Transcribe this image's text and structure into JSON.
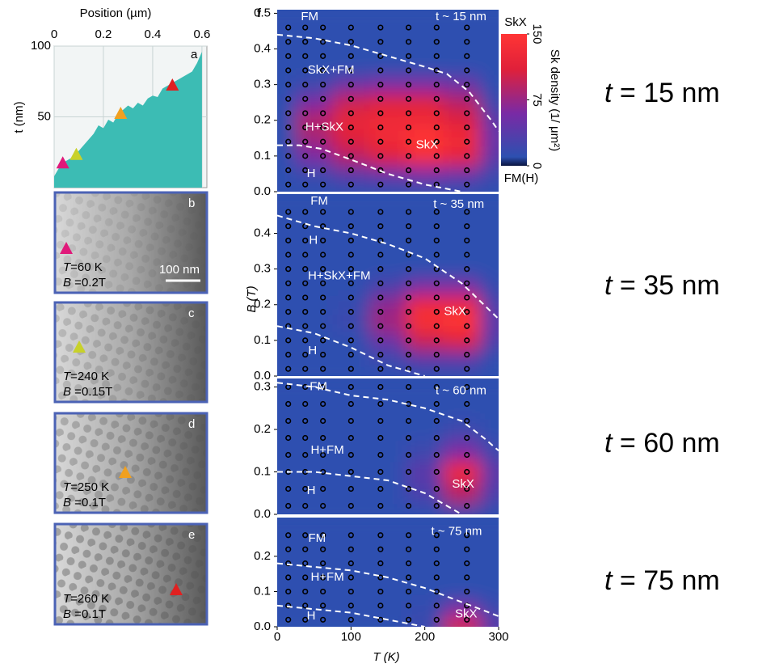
{
  "figure": {
    "panel_f_letter": "f",
    "right_labels": [
      {
        "symbol": "t",
        "text": " = 15 nm"
      },
      {
        "symbol": "t",
        "text": " = 35 nm"
      },
      {
        "symbol": "t",
        "text": " = 60 nm"
      },
      {
        "symbol": "t",
        "text": " = 75 nm"
      }
    ]
  },
  "micrographs": [
    {
      "letter": "b",
      "T_symbol": "T",
      "T_text": "=60 K",
      "B_symbol": "B",
      "B_text": " =0.2T",
      "scale_bar": "100 nm"
    },
    {
      "letter": "c",
      "T_symbol": "T",
      "T_text": "=240 K",
      "B_symbol": "B",
      "B_text": " =0.15T"
    },
    {
      "letter": "d",
      "T_symbol": "T",
      "T_text": "=250 K",
      "B_symbol": "B",
      "B_text": " =0.1T"
    },
    {
      "letter": "e",
      "T_symbol": "T",
      "T_text": "=260 K",
      "B_symbol": "B",
      "B_text": " =0.1T"
    }
  ],
  "chart_data": [
    {
      "type": "area",
      "letter": "a",
      "x_label": "Position (µm)",
      "y_label": "t (nm)",
      "x": [
        0,
        0.02,
        0.04,
        0.06,
        0.08,
        0.1,
        0.12,
        0.14,
        0.16,
        0.18,
        0.2,
        0.22,
        0.24,
        0.26,
        0.28,
        0.3,
        0.32,
        0.34,
        0.36,
        0.38,
        0.4,
        0.42,
        0.44,
        0.46,
        0.48,
        0.5,
        0.52,
        0.54,
        0.56,
        0.58,
        0.6
      ],
      "values": [
        8,
        14,
        18,
        20,
        22,
        26,
        30,
        34,
        38,
        44,
        42,
        48,
        46,
        52,
        55,
        58,
        56,
        60,
        58,
        63,
        65,
        64,
        70,
        72,
        74,
        76,
        78,
        80,
        82,
        88,
        96
      ],
      "color": "#3cbcb4",
      "xlim": [
        0,
        0.62
      ],
      "xticks": [
        0,
        0.2,
        0.4,
        0.6
      ],
      "ylim": [
        0,
        100
      ],
      "yticks": [
        50,
        100
      ],
      "grid": true,
      "markers": {
        "x": [
          0.035,
          0.09,
          0.27,
          0.48
        ],
        "values": [
          17,
          23,
          52,
          72
        ],
        "colors": [
          "#e0197a",
          "#c8d12a",
          "#f0a020",
          "#e02020"
        ]
      }
    },
    {
      "type": "heatmap",
      "label": "t ~ 15 nm",
      "annotations": [
        "FM",
        "SkX+FM",
        "H+SkX",
        "SkX",
        "H"
      ],
      "x": [
        0,
        50,
        100,
        150,
        200,
        250,
        300
      ],
      "y": [
        0,
        0.05,
        0.1,
        0.15,
        0.2,
        0.25,
        0.3,
        0.35,
        0.4,
        0.45,
        0.5
      ],
      "z": [
        [
          10,
          10,
          10,
          10,
          10,
          10,
          10
        ],
        [
          10,
          20,
          40,
          50,
          60,
          50,
          20
        ],
        [
          10,
          60,
          90,
          110,
          140,
          120,
          40
        ],
        [
          10,
          80,
          110,
          130,
          150,
          130,
          50
        ],
        [
          10,
          90,
          120,
          130,
          130,
          110,
          40
        ],
        [
          10,
          60,
          100,
          110,
          110,
          90,
          20
        ],
        [
          10,
          20,
          50,
          60,
          60,
          50,
          10
        ],
        [
          10,
          10,
          10,
          10,
          10,
          10,
          10
        ],
        [
          10,
          10,
          10,
          10,
          10,
          10,
          10
        ],
        [
          10,
          10,
          10,
          10,
          10,
          10,
          10
        ],
        [
          10,
          10,
          10,
          10,
          10,
          10,
          10
        ]
      ],
      "xlim": [
        0,
        300
      ],
      "ylim": [
        0,
        0.51
      ],
      "yticks": [
        {
          "value": 0,
          "label": "0.0"
        },
        0.1,
        0.2,
        0.3,
        0.4,
        0.5
      ],
      "points_T": [
        15,
        38,
        62,
        100,
        140,
        178,
        216,
        257
      ],
      "points_B": [
        0.02,
        0.06,
        0.1,
        0.14,
        0.18,
        0.22,
        0.26,
        0.3,
        0.34,
        0.38,
        0.42,
        0.46
      ],
      "boundaries": [
        {
          "x": [
            0,
            50,
            100,
            150,
            200,
            230,
            260,
            290,
            300
          ],
          "values": [
            0.44,
            0.43,
            0.41,
            0.38,
            0.35,
            0.33,
            0.28,
            0.2,
            0.17
          ]
        },
        {
          "x": [
            0,
            30,
            60,
            100,
            150,
            200,
            250
          ],
          "values": [
            0.13,
            0.13,
            0.12,
            0.09,
            0.05,
            0.02,
            0
          ]
        }
      ],
      "colorbar": {
        "top_label": "SkX",
        "bottom_label": "FM(H)",
        "label": "Sk density (1/ μm²)",
        "ticks": [
          0,
          75,
          150
        ],
        "colormap": [
          {
            "value": 0,
            "color": "#0a1540"
          },
          {
            "value": 10,
            "color": "#2d50b0"
          },
          {
            "value": 60,
            "color": "#7a2aa5"
          },
          {
            "value": 110,
            "color": "#e0203a"
          },
          {
            "value": 150,
            "color": "#ff3535"
          }
        ]
      }
    },
    {
      "type": "heatmap",
      "label": "t ~ 35 nm",
      "annotations": [
        "FM",
        "H",
        "H+SkX+FM",
        "SkX",
        "H"
      ],
      "y_label": "B (T)",
      "x": [
        0,
        50,
        100,
        150,
        200,
        250,
        300
      ],
      "y": [
        0,
        0.05,
        0.1,
        0.15,
        0.2,
        0.25,
        0.3,
        0.35,
        0.4,
        0.45,
        0.5
      ],
      "z": [
        [
          10,
          10,
          10,
          10,
          10,
          10,
          10
        ],
        [
          10,
          10,
          10,
          20,
          40,
          40,
          10
        ],
        [
          10,
          10,
          10,
          50,
          100,
          110,
          30
        ],
        [
          10,
          10,
          20,
          80,
          140,
          150,
          40
        ],
        [
          10,
          10,
          15,
          70,
          130,
          130,
          30
        ],
        [
          10,
          10,
          10,
          30,
          60,
          60,
          15
        ],
        [
          10,
          10,
          10,
          10,
          10,
          10,
          10
        ],
        [
          10,
          10,
          10,
          10,
          10,
          10,
          10
        ],
        [
          10,
          10,
          10,
          10,
          10,
          10,
          10
        ],
        [
          10,
          10,
          10,
          10,
          10,
          10,
          10
        ],
        [
          10,
          10,
          10,
          10,
          10,
          10,
          10
        ]
      ],
      "xlim": [
        0,
        300
      ],
      "ylim": [
        0,
        0.51
      ],
      "yticks": [
        {
          "value": 0,
          "label": "0.0"
        },
        0.1,
        0.2,
        0.3,
        0.4
      ],
      "points_T": [
        15,
        38,
        62,
        100,
        140,
        178,
        216,
        257
      ],
      "points_B": [
        0.02,
        0.06,
        0.1,
        0.14,
        0.18,
        0.22,
        0.26,
        0.3,
        0.34,
        0.38,
        0.42,
        0.46
      ],
      "boundaries": [
        {
          "x": [
            0,
            50,
            100,
            150,
            200,
            250,
            300
          ],
          "values": [
            0.45,
            0.42,
            0.4,
            0.37,
            0.33,
            0.26,
            0.16
          ]
        },
        {
          "x": [
            0,
            50,
            100,
            150,
            200
          ],
          "values": [
            0.14,
            0.12,
            0.08,
            0.03,
            0
          ]
        }
      ]
    },
    {
      "type": "heatmap",
      "label": "t ~ 60 nm",
      "annotations": [
        "FM",
        "H+FM",
        "SkX",
        "H"
      ],
      "x": [
        0,
        50,
        100,
        150,
        200,
        250,
        300
      ],
      "y": [
        0,
        0.05,
        0.1,
        0.15,
        0.2,
        0.25,
        0.3
      ],
      "z": [
        [
          10,
          10,
          10,
          10,
          10,
          20,
          10
        ],
        [
          10,
          10,
          10,
          10,
          30,
          90,
          30
        ],
        [
          10,
          10,
          10,
          10,
          40,
          130,
          40
        ],
        [
          10,
          10,
          10,
          10,
          20,
          60,
          20
        ],
        [
          10,
          10,
          10,
          10,
          10,
          20,
          10
        ],
        [
          10,
          10,
          10,
          10,
          10,
          10,
          10
        ],
        [
          10,
          10,
          10,
          10,
          10,
          10,
          10
        ]
      ],
      "xlim": [
        0,
        300
      ],
      "ylim": [
        0,
        0.32
      ],
      "yticks": [
        {
          "value": 0,
          "label": "0.0"
        },
        0.1,
        0.2,
        0.3
      ],
      "points_T": [
        15,
        38,
        62,
        100,
        140,
        178,
        216,
        257
      ],
      "points_B": [
        0.02,
        0.06,
        0.1,
        0.14,
        0.18,
        0.22,
        0.26,
        0.3
      ],
      "boundaries": [
        {
          "x": [
            0,
            50,
            100,
            150,
            200,
            250,
            280,
            300
          ],
          "values": [
            0.31,
            0.3,
            0.28,
            0.27,
            0.25,
            0.22,
            0.18,
            0.15
          ]
        },
        {
          "x": [
            0,
            50,
            100,
            150,
            200,
            250
          ],
          "values": [
            0.1,
            0.1,
            0.09,
            0.08,
            0.05,
            0
          ]
        }
      ]
    },
    {
      "type": "heatmap",
      "label": "t ~ 75 nm",
      "annotations": [
        "FM",
        "H+FM",
        "SkX",
        "H"
      ],
      "x_label": "T (K)",
      "x": [
        0,
        50,
        100,
        150,
        200,
        250,
        300
      ],
      "y": [
        0,
        0.05,
        0.1,
        0.15,
        0.2,
        0.25,
        0.3
      ],
      "z": [
        [
          10,
          10,
          10,
          10,
          20,
          120,
          40
        ],
        [
          10,
          10,
          10,
          10,
          15,
          60,
          20
        ],
        [
          10,
          10,
          10,
          10,
          10,
          10,
          10
        ],
        [
          10,
          10,
          10,
          10,
          10,
          10,
          10
        ],
        [
          10,
          10,
          10,
          10,
          10,
          10,
          10
        ],
        [
          10,
          10,
          10,
          10,
          10,
          10,
          10
        ],
        [
          10,
          10,
          10,
          10,
          10,
          10,
          10
        ]
      ],
      "xlim": [
        0,
        300
      ],
      "ylim": [
        0,
        0.31
      ],
      "yticks": [
        {
          "value": 0,
          "label": "0.0"
        },
        0.1,
        0.2
      ],
      "xticks": [
        0,
        100,
        200,
        300
      ],
      "points_T": [
        15,
        38,
        62,
        100,
        140,
        178,
        216,
        257
      ],
      "points_B": [
        0.02,
        0.06,
        0.1,
        0.14,
        0.18,
        0.22,
        0.26
      ],
      "boundaries": [
        {
          "x": [
            0,
            50,
            100,
            150,
            200,
            250,
            300
          ],
          "values": [
            0.18,
            0.17,
            0.16,
            0.14,
            0.11,
            0.07,
            0.03
          ]
        },
        {
          "x": [
            0,
            50,
            100,
            150,
            200
          ],
          "values": [
            0.06,
            0.05,
            0.04,
            0.02,
            0
          ]
        }
      ]
    }
  ]
}
